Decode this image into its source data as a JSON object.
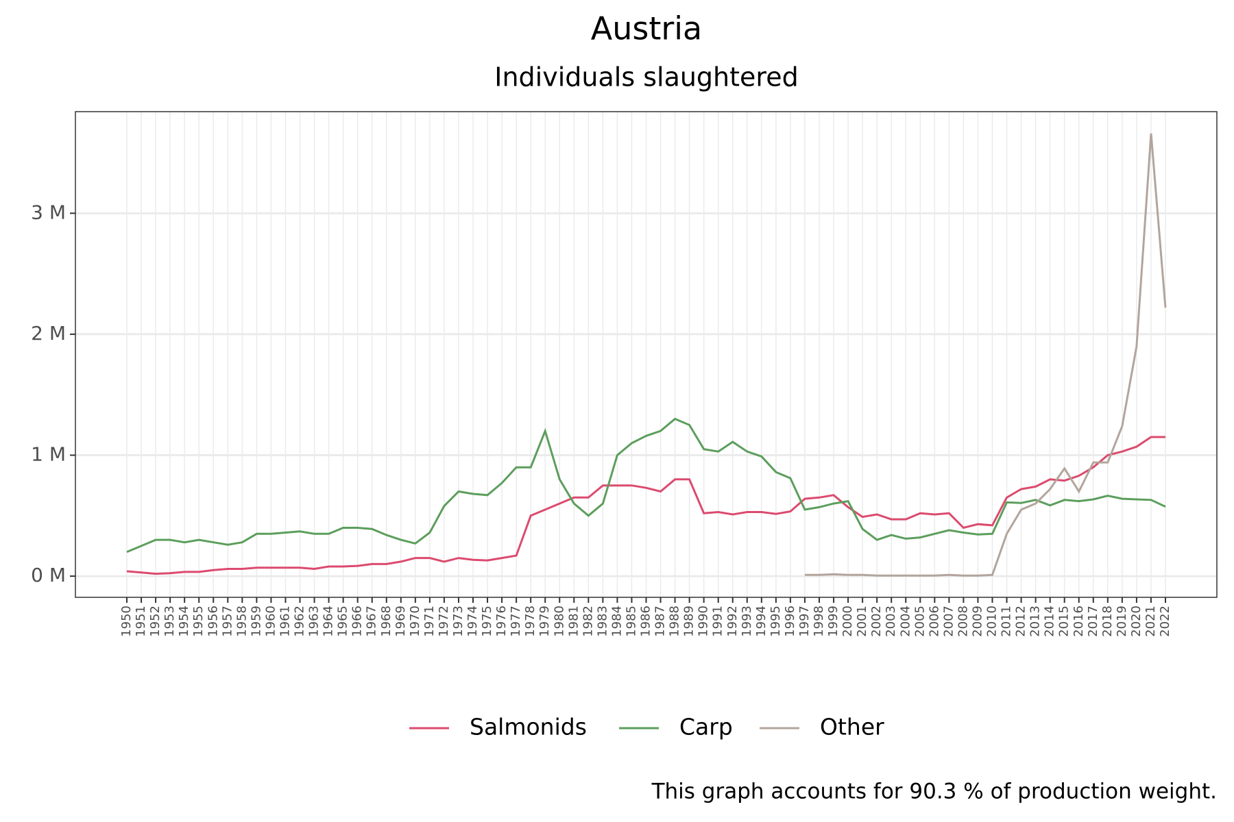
{
  "chart_data": {
    "type": "line",
    "title": "Austria",
    "subtitle": "Individuals slaughtered",
    "caption": "This graph accounts for 90.3 % of production weight.",
    "categories": [
      "1950",
      "1951",
      "1952",
      "1953",
      "1954",
      "1955",
      "1956",
      "1957",
      "1958",
      "1959",
      "1960",
      "1961",
      "1962",
      "1963",
      "1964",
      "1965",
      "1966",
      "1967",
      "1968",
      "1969",
      "1970",
      "1971",
      "1972",
      "1973",
      "1974",
      "1975",
      "1976",
      "1977",
      "1978",
      "1979",
      "1980",
      "1981",
      "1982",
      "1983",
      "1984",
      "1985",
      "1986",
      "1987",
      "1988",
      "1989",
      "1990",
      "1991",
      "1992",
      "1993",
      "1994",
      "1995",
      "1996",
      "1997",
      "1998",
      "1999",
      "2000",
      "2001",
      "2002",
      "2003",
      "2004",
      "2005",
      "2006",
      "2007",
      "2008",
      "2009",
      "2010",
      "2011",
      "2012",
      "2013",
      "2014",
      "2015",
      "2016",
      "2017",
      "2018",
      "2019",
      "2020",
      "2021",
      "2022"
    ],
    "series": [
      {
        "name": "Salmonids",
        "color": "#dc4a6e",
        "values": [
          0.04,
          0.03,
          0.02,
          0.025,
          0.035,
          0.035,
          0.05,
          0.06,
          0.06,
          0.07,
          0.07,
          0.07,
          0.07,
          0.06,
          0.08,
          0.08,
          0.085,
          0.1,
          0.1,
          0.12,
          0.15,
          0.15,
          0.12,
          0.15,
          0.135,
          0.13,
          0.15,
          0.17,
          0.5,
          0.55,
          0.6,
          0.65,
          0.65,
          0.75,
          0.75,
          0.75,
          0.73,
          0.7,
          0.8,
          0.8,
          0.52,
          0.53,
          0.51,
          0.53,
          0.53,
          0.515,
          0.535,
          0.64,
          0.65,
          0.67,
          0.57,
          0.49,
          0.51,
          0.47,
          0.47,
          0.52,
          0.51,
          0.52,
          0.4,
          0.43,
          0.42,
          0.65,
          0.72,
          0.74,
          0.8,
          0.79,
          0.83,
          0.9,
          1.0,
          1.03,
          1.07,
          1.15,
          1.15
        ]
      },
      {
        "name": "Carp",
        "color": "#5c9e5c",
        "values": [
          0.2,
          0.25,
          0.3,
          0.3,
          0.28,
          0.3,
          0.28,
          0.26,
          0.28,
          0.35,
          0.35,
          0.36,
          0.37,
          0.35,
          0.35,
          0.4,
          0.4,
          0.39,
          0.34,
          0.3,
          0.27,
          0.36,
          0.58,
          0.7,
          0.68,
          0.67,
          0.77,
          0.9,
          0.9,
          1.2,
          0.8,
          0.6,
          0.5,
          0.6,
          1.0,
          1.1,
          1.16,
          1.2,
          1.3,
          1.25,
          1.05,
          1.03,
          1.11,
          1.03,
          0.99,
          0.86,
          0.81,
          0.55,
          0.57,
          0.6,
          0.62,
          0.39,
          0.3,
          0.34,
          0.31,
          0.32,
          0.35,
          0.38,
          0.36,
          0.345,
          0.35,
          0.61,
          0.605,
          0.63,
          0.585,
          0.63,
          0.62,
          0.635,
          0.665,
          0.64,
          0.635,
          0.63,
          0.575
        ]
      },
      {
        "name": "Other",
        "color": "#b3a59c",
        "values": [
          null,
          null,
          null,
          null,
          null,
          null,
          null,
          null,
          null,
          null,
          null,
          null,
          null,
          null,
          null,
          null,
          null,
          null,
          null,
          null,
          null,
          null,
          null,
          null,
          null,
          null,
          null,
          null,
          null,
          null,
          null,
          null,
          null,
          null,
          null,
          null,
          null,
          null,
          null,
          null,
          null,
          null,
          null,
          null,
          null,
          null,
          null,
          0.01,
          0.01,
          0.015,
          0.01,
          0.01,
          0.005,
          0.005,
          0.005,
          0.005,
          0.005,
          0.01,
          0.005,
          0.005,
          0.01,
          0.35,
          0.55,
          0.6,
          0.72,
          0.89,
          0.7,
          0.94,
          0.94,
          1.24,
          1.9,
          3.66,
          2.22
        ]
      }
    ],
    "ylim": [
      -0.175,
      3.84
    ],
    "yticks": [
      {
        "value": 0,
        "label": "0 M"
      },
      {
        "value": 1,
        "label": "1 M"
      },
      {
        "value": 2,
        "label": "2 M"
      },
      {
        "value": 3,
        "label": "3 M"
      }
    ],
    "grid": true,
    "legend": "bottom"
  }
}
